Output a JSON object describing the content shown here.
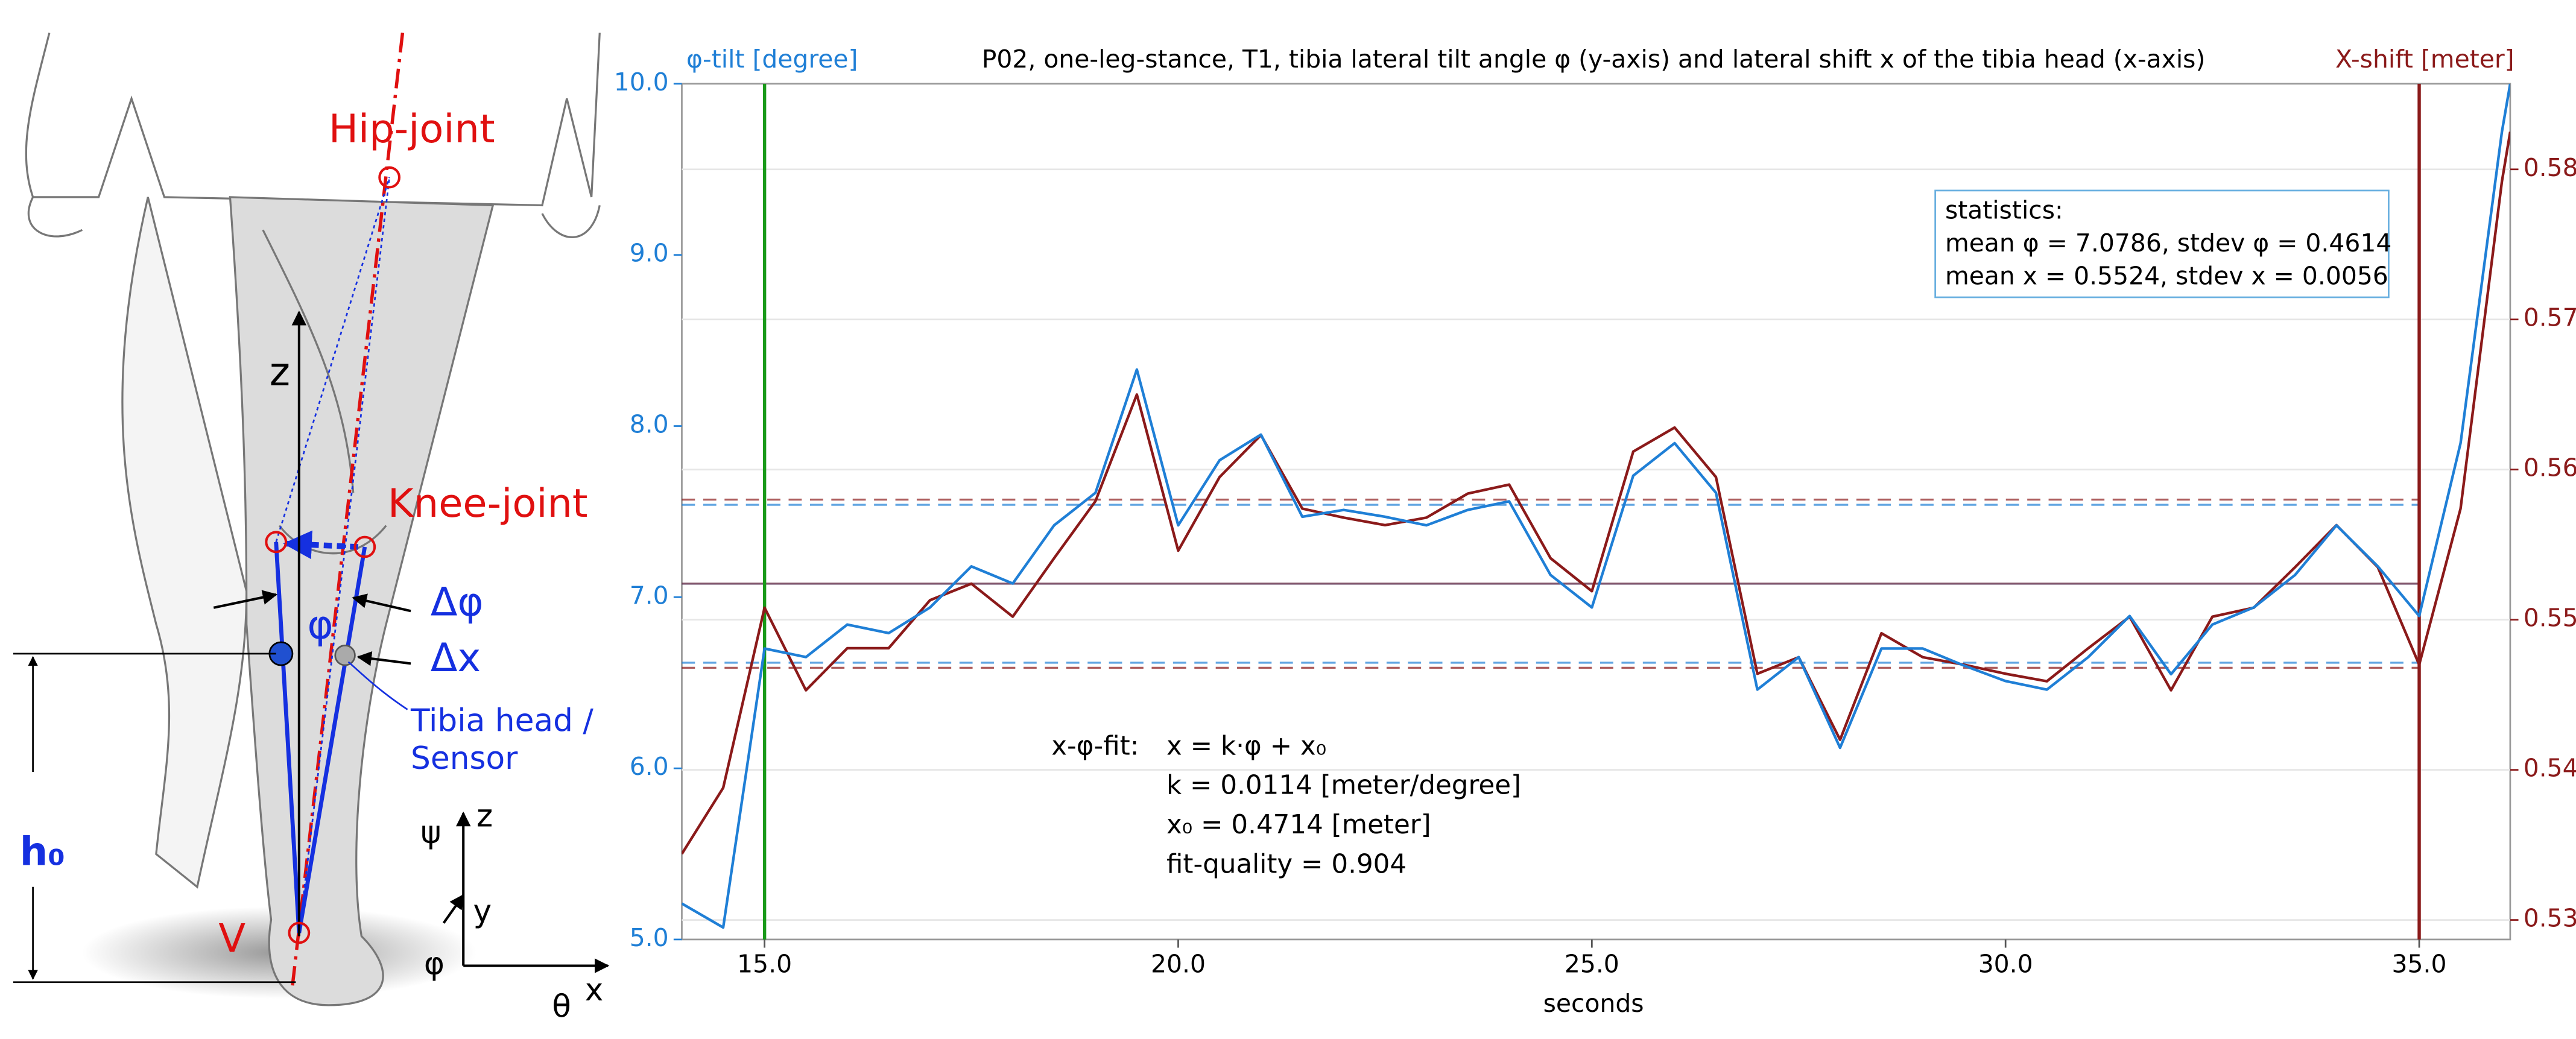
{
  "chart_data": {
    "type": "line",
    "title": "P02, one-leg-stance, T1, tibia lateral tilt angle φ (y-axis) and lateral shift x of the tibia head (x-axis)",
    "y_label": "φ-tilt [degree]",
    "y2_label": "X-shift [meter]",
    "x_label": "seconds",
    "xlim": [
      14.0,
      36.1
    ],
    "xticks": [
      {
        "value": 15,
        "label": "15.0"
      },
      {
        "value": 20,
        "label": "20.0"
      },
      {
        "value": 25,
        "label": "25.0"
      },
      {
        "value": 30,
        "label": "30.0"
      },
      {
        "value": 35,
        "label": "35.0"
      }
    ],
    "ylim": [
      5,
      10
    ],
    "yticks": [
      {
        "value": 5,
        "label": "5.0"
      },
      {
        "value": 6,
        "label": "6.0"
      },
      {
        "value": 7,
        "label": "7.0"
      },
      {
        "value": 8,
        "label": "8.0"
      },
      {
        "value": 9,
        "label": "9.0"
      },
      {
        "value": 10,
        "label": "10.0"
      }
    ],
    "y2lim": [
      0.5287,
      0.5857
    ],
    "y2ticks": [
      0.53,
      0.54,
      0.55,
      0.56,
      0.57,
      0.58
    ],
    "grid": true,
    "x": [
      14.0,
      14.5,
      15.0,
      15.5,
      16.0,
      16.5,
      17.0,
      17.5,
      18.0,
      18.5,
      19.0,
      19.5,
      20.0,
      20.5,
      21.0,
      21.5,
      22.0,
      22.5,
      23.0,
      23.5,
      24.0,
      24.5,
      25.0,
      25.5,
      26.0,
      26.5,
      27.0,
      27.5,
      28.0,
      28.5,
      29.0,
      29.5,
      30.0,
      30.5,
      31.0,
      31.5,
      32.0,
      32.5,
      33.0,
      33.5,
      34.0,
      34.5,
      35.0,
      35.5,
      36.0,
      36.1
    ],
    "series": [
      {
        "color": "#1f7fd6",
        "axis": "y",
        "values": [
          5.21,
          5.07,
          6.7,
          6.65,
          6.84,
          6.79,
          6.94,
          7.18,
          7.08,
          7.42,
          7.61,
          8.33,
          7.42,
          7.8,
          7.95,
          7.47,
          7.51,
          7.47,
          7.42,
          7.51,
          7.56,
          7.13,
          6.94,
          7.71,
          7.9,
          7.61,
          6.46,
          6.65,
          6.12,
          6.7,
          6.7,
          6.6,
          6.51,
          6.46,
          6.65,
          6.89,
          6.55,
          6.84,
          6.94,
          7.13,
          7.42,
          7.18,
          6.89,
          7.9,
          9.72,
          10.0
        ],
        "mean": 7.0786,
        "stdev": 0.4614
      },
      {
        "color": "#8b1a1a",
        "axis": "y2",
        "values": [
          0.5344,
          0.5388,
          0.5508,
          0.5453,
          0.5481,
          0.5481,
          0.5513,
          0.5524,
          0.5502,
          0.5541,
          0.5579,
          0.565,
          0.5546,
          0.5595,
          0.5623,
          0.5574,
          0.5568,
          0.5563,
          0.5568,
          0.5584,
          0.559,
          0.5541,
          0.5519,
          0.5612,
          0.5628,
          0.5595,
          0.5464,
          0.5475,
          0.542,
          0.5491,
          0.5475,
          0.547,
          0.5464,
          0.5459,
          0.5481,
          0.5502,
          0.5453,
          0.5502,
          0.5508,
          0.5535,
          0.5563,
          0.5535,
          0.547,
          0.5574,
          0.5792,
          0.5825
        ],
        "mean": 0.5524,
        "stdev": 0.0056
      }
    ],
    "markers": [
      {
        "x": 15,
        "color": "#1a9a1a"
      },
      {
        "x": 35,
        "color": "#8b1a1a"
      }
    ],
    "statistics": [
      "statistics:",
      "mean φ = 7.0786, stdev φ = 0.4614",
      "mean x = 0.5524, stdev x = 0.0056"
    ],
    "fit": {
      "label": "x-φ-fit:",
      "lines": [
        "x  = k·φ + x₀",
        "k  = 0.0114 [meter/degree]",
        "x₀ = 0.4714 [meter]",
        "fit-quality = 0.904"
      ]
    }
  },
  "diagram": {
    "hip": "Hip-joint",
    "knee": "Knee-joint",
    "z": "z",
    "phi": "φ",
    "dphi": "Δφ",
    "dx": "Δx",
    "sensor": [
      "Tibia head /",
      "Sensor"
    ],
    "h0": "h₀",
    "v": "V",
    "axes": {
      "psi": "ψ",
      "z": "z",
      "y": "y",
      "phi": "φ",
      "x": "x",
      "theta": "θ"
    }
  }
}
